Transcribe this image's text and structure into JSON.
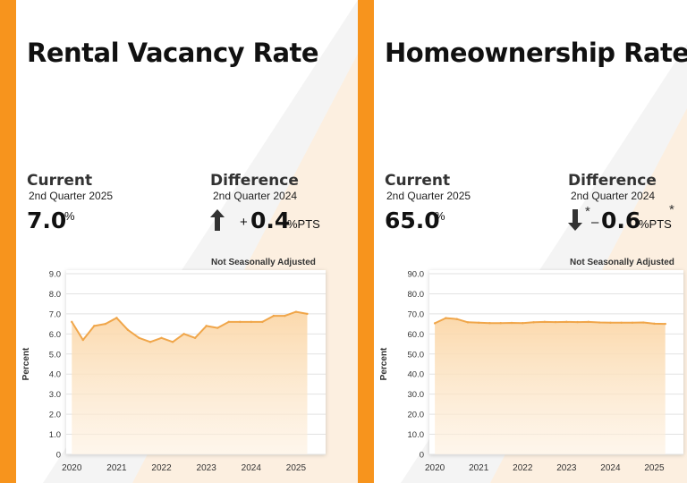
{
  "panels": [
    {
      "title": "Rental Vacancy Rate",
      "current_label": "Current",
      "current_period": "2nd Quarter 2025",
      "current_value": "7.0",
      "current_unit": "%",
      "difference_label": "Difference",
      "difference_period": "2nd Quarter 2024",
      "difference_direction": "up",
      "difference_sign": "+",
      "difference_value": "0.4",
      "difference_unit": "%PTS",
      "difference_asterisk": false,
      "adjustment_note": "Not Seasonally Adjusted"
    },
    {
      "title": "Homeownership Rate",
      "current_label": "Current",
      "current_period": "2nd Quarter 2025",
      "current_value": "65.0",
      "current_unit": "%",
      "difference_label": "Difference",
      "difference_period": "2nd Quarter 2024",
      "difference_direction": "down",
      "difference_sign": "–",
      "difference_value": "0.6",
      "difference_unit": "%PTS",
      "difference_asterisk": true,
      "asterisk_text": "*",
      "adjustment_note": "Not Seasonally Adjusted"
    }
  ],
  "colors": {
    "accent_orange": "#f7941d",
    "line": "#f0a64a",
    "fill": "#fde6c6",
    "arrow": "#333333"
  },
  "chart_data": [
    {
      "type": "area",
      "title": "Rental Vacancy Rate",
      "xlabel": "",
      "ylabel": "Percent",
      "ylim": [
        0,
        9.0
      ],
      "yticks": [
        0,
        1.0,
        2.0,
        3.0,
        4.0,
        5.0,
        6.0,
        7.0,
        8.0,
        9.0
      ],
      "ytick_labels": [
        "0",
        "1.0",
        "2.0",
        "3.0",
        "4.0",
        "5.0",
        "6.0",
        "7.0",
        "8.0",
        "9.0"
      ],
      "xlim": [
        2019.875,
        2025.5
      ],
      "xtick_labels": [
        "2020",
        "2021",
        "2022",
        "2023",
        "2024",
        "2025"
      ],
      "xticks": [
        2020,
        2021,
        2022,
        2023,
        2024,
        2025
      ],
      "grid": true,
      "x": [
        2020.0,
        2020.25,
        2020.5,
        2020.75,
        2021.0,
        2021.25,
        2021.5,
        2021.75,
        2022.0,
        2022.25,
        2022.5,
        2022.75,
        2023.0,
        2023.25,
        2023.5,
        2023.75,
        2024.0,
        2024.25,
        2024.5,
        2024.75,
        2025.0,
        2025.25
      ],
      "values": [
        6.6,
        5.7,
        6.4,
        6.5,
        6.8,
        6.2,
        5.8,
        5.6,
        5.8,
        5.6,
        6.0,
        5.8,
        6.4,
        6.3,
        6.6,
        6.6,
        6.6,
        6.6,
        6.9,
        6.9,
        7.1,
        7.0
      ]
    },
    {
      "type": "area",
      "title": "Homeownership Rate",
      "xlabel": "",
      "ylabel": "Percent",
      "ylim": [
        0,
        90.0
      ],
      "yticks": [
        0,
        10.0,
        20.0,
        30.0,
        40.0,
        50.0,
        60.0,
        70.0,
        80.0,
        90.0
      ],
      "ytick_labels": [
        "0",
        "10.0",
        "20.0",
        "30.0",
        "40.0",
        "50.0",
        "60.0",
        "70.0",
        "80.0",
        "90.0"
      ],
      "xlim": [
        2019.875,
        2025.5
      ],
      "xtick_labels": [
        "2020",
        "2021",
        "2022",
        "2023",
        "2024",
        "2025"
      ],
      "xticks": [
        2020,
        2021,
        2022,
        2023,
        2024,
        2025
      ],
      "grid": true,
      "x": [
        2020.0,
        2020.25,
        2020.5,
        2020.75,
        2021.0,
        2021.25,
        2021.5,
        2021.75,
        2022.0,
        2022.25,
        2022.5,
        2022.75,
        2023.0,
        2023.25,
        2023.5,
        2023.75,
        2024.0,
        2024.25,
        2024.5,
        2024.75,
        2025.0,
        2025.25
      ],
      "values": [
        65.3,
        67.9,
        67.4,
        65.8,
        65.6,
        65.4,
        65.4,
        65.5,
        65.4,
        65.8,
        66.0,
        65.9,
        66.0,
        65.9,
        66.0,
        65.7,
        65.6,
        65.6,
        65.6,
        65.7,
        65.1,
        65.0
      ]
    }
  ]
}
